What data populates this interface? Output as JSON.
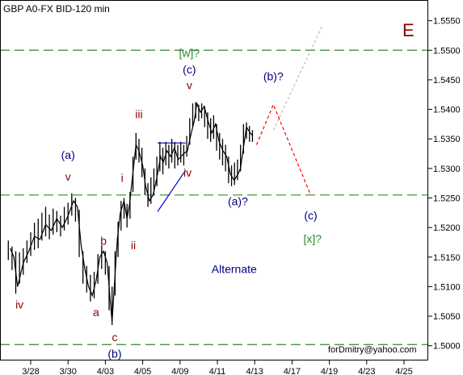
{
  "chart_data": {
    "type": "line",
    "title": "GBP A0-FX BID-120 min",
    "corner_label": "E",
    "footer_text": "forDmitry@yahoo.com",
    "ylim": [
      1.4975,
      1.5585
    ],
    "y_ticks": [
      "1.5000",
      "1.5050",
      "1.5100",
      "1.5150",
      "1.5200",
      "1.5250",
      "1.5300",
      "1.5350",
      "1.5400",
      "1.5450",
      "1.5500",
      "1.5550"
    ],
    "y_tick_values": [
      1.5,
      1.505,
      1.51,
      1.515,
      1.52,
      1.525,
      1.53,
      1.535,
      1.54,
      1.545,
      1.55,
      1.555
    ],
    "x_ticks": [
      "3/28",
      "3/30",
      "4/03",
      "4/05",
      "4/09",
      "4/11",
      "4/13",
      "4/17",
      "4/19",
      "4/23",
      "4/25"
    ],
    "x_tick_positions": [
      0,
      1,
      2,
      3,
      4,
      5,
      6,
      7,
      8,
      9,
      10
    ],
    "grid": false,
    "price_path": [
      [
        -0.55,
        1.5165
      ],
      [
        -0.45,
        1.515
      ],
      [
        -0.35,
        1.51
      ],
      [
        -0.2,
        1.514
      ],
      [
        -0.05,
        1.516
      ],
      [
        0.1,
        1.5185
      ],
      [
        0.25,
        1.518
      ],
      [
        0.4,
        1.5205
      ],
      [
        0.55,
        1.5195
      ],
      [
        0.7,
        1.5215
      ],
      [
        0.85,
        1.52
      ],
      [
        1.0,
        1.522
      ],
      [
        1.15,
        1.5245
      ],
      [
        1.25,
        1.5235
      ],
      [
        1.35,
        1.517
      ],
      [
        1.45,
        1.513
      ],
      [
        1.55,
        1.51
      ],
      [
        1.65,
        1.5085
      ],
      [
        1.75,
        1.511
      ],
      [
        1.85,
        1.515
      ],
      [
        1.95,
        1.516
      ],
      [
        2.05,
        1.514
      ],
      [
        2.12,
        1.5085
      ],
      [
        2.18,
        1.504
      ],
      [
        2.25,
        1.511
      ],
      [
        2.32,
        1.518
      ],
      [
        2.4,
        1.5225
      ],
      [
        2.5,
        1.5245
      ],
      [
        2.58,
        1.5215
      ],
      [
        2.65,
        1.524
      ],
      [
        2.75,
        1.53
      ],
      [
        2.82,
        1.534
      ],
      [
        2.9,
        1.533
      ],
      [
        3.0,
        1.5305
      ],
      [
        3.08,
        1.527
      ],
      [
        3.18,
        1.5245
      ],
      [
        3.28,
        1.5255
      ],
      [
        3.38,
        1.5285
      ],
      [
        3.48,
        1.532
      ],
      [
        3.55,
        1.531
      ],
      [
        3.65,
        1.533
      ],
      [
        3.75,
        1.532
      ],
      [
        3.85,
        1.5335
      ],
      [
        3.95,
        1.5315
      ],
      [
        4.1,
        1.5325
      ],
      [
        4.2,
        1.533
      ],
      [
        4.3,
        1.536
      ],
      [
        4.38,
        1.538
      ],
      [
        4.45,
        1.541
      ],
      [
        4.55,
        1.5395
      ],
      [
        4.65,
        1.5405
      ],
      [
        4.75,
        1.538
      ],
      [
        4.85,
        1.536
      ],
      [
        4.95,
        1.5375
      ],
      [
        5.05,
        1.5345
      ],
      [
        5.15,
        1.533
      ],
      [
        5.25,
        1.532
      ],
      [
        5.35,
        1.529
      ],
      [
        5.45,
        1.528
      ],
      [
        5.55,
        1.529
      ],
      [
        5.62,
        1.53
      ],
      [
        5.7,
        1.5335
      ],
      [
        5.78,
        1.537
      ],
      [
        5.88,
        1.536
      ],
      [
        5.95,
        1.5355
      ]
    ],
    "price_bars": [
      [
        -0.6,
        1.5145,
        1.5178
      ],
      [
        -0.5,
        1.5128,
        1.5168
      ],
      [
        -0.4,
        1.5088,
        1.516
      ],
      [
        -0.3,
        1.5105,
        1.5158
      ],
      [
        -0.2,
        1.512,
        1.5165
      ],
      [
        -0.1,
        1.514,
        1.5178
      ],
      [
        0.0,
        1.5152,
        1.5192
      ],
      [
        0.1,
        1.5162,
        1.5208
      ],
      [
        0.2,
        1.5165,
        1.5215
      ],
      [
        0.3,
        1.5178,
        1.5225
      ],
      [
        0.4,
        1.5185,
        1.5235
      ],
      [
        0.5,
        1.518,
        1.5222
      ],
      [
        0.6,
        1.5188,
        1.5232
      ],
      [
        0.7,
        1.5192,
        1.5228
      ],
      [
        0.8,
        1.5185,
        1.522
      ],
      [
        0.9,
        1.5195,
        1.5235
      ],
      [
        1.0,
        1.5205,
        1.5242
      ],
      [
        1.1,
        1.522,
        1.5258
      ],
      [
        1.2,
        1.521,
        1.525
      ],
      [
        1.3,
        1.515,
        1.523
      ],
      [
        1.4,
        1.5105,
        1.516
      ],
      [
        1.5,
        1.509,
        1.5135
      ],
      [
        1.6,
        1.5075,
        1.512
      ],
      [
        1.7,
        1.508,
        1.5125
      ],
      [
        1.8,
        1.5105,
        1.5155
      ],
      [
        1.9,
        1.513,
        1.517
      ],
      [
        2.0,
        1.512,
        1.516
      ],
      [
        2.1,
        1.506,
        1.5135
      ],
      [
        2.18,
        1.5035,
        1.51
      ],
      [
        2.26,
        1.5085,
        1.516
      ],
      [
        2.34,
        1.515,
        1.521
      ],
      [
        2.42,
        1.5195,
        1.5245
      ],
      [
        2.5,
        1.5215,
        1.525
      ],
      [
        2.58,
        1.52,
        1.524
      ],
      [
        2.66,
        1.5215,
        1.526
      ],
      [
        2.74,
        1.526,
        1.532
      ],
      [
        2.82,
        1.5315,
        1.536
      ],
      [
        2.9,
        1.531,
        1.535
      ],
      [
        2.98,
        1.5285,
        1.5335
      ],
      [
        3.06,
        1.5255,
        1.53
      ],
      [
        3.14,
        1.5235,
        1.5275
      ],
      [
        3.22,
        1.524,
        1.5285
      ],
      [
        3.3,
        1.5255,
        1.53
      ],
      [
        3.38,
        1.527,
        1.532
      ],
      [
        3.46,
        1.5295,
        1.5345
      ],
      [
        3.54,
        1.529,
        1.5335
      ],
      [
        3.62,
        1.5305,
        1.5345
      ],
      [
        3.7,
        1.53,
        1.534
      ],
      [
        3.78,
        1.531,
        1.535
      ],
      [
        3.86,
        1.53,
        1.5345
      ],
      [
        3.94,
        1.5305,
        1.534
      ],
      [
        4.02,
        1.531,
        1.5345
      ],
      [
        4.1,
        1.5305,
        1.534
      ],
      [
        4.18,
        1.532,
        1.5355
      ],
      [
        4.26,
        1.534,
        1.5385
      ],
      [
        4.34,
        1.537,
        1.541
      ],
      [
        4.42,
        1.5385,
        1.5412
      ],
      [
        4.5,
        1.538,
        1.5408
      ],
      [
        4.58,
        1.5385,
        1.541
      ],
      [
        4.66,
        1.537,
        1.5405
      ],
      [
        4.74,
        1.535,
        1.5395
      ],
      [
        4.82,
        1.5345,
        1.5385
      ],
      [
        4.9,
        1.535,
        1.539
      ],
      [
        4.98,
        1.533,
        1.5375
      ],
      [
        5.06,
        1.5315,
        1.536
      ],
      [
        5.14,
        1.5305,
        1.535
      ],
      [
        5.22,
        1.5295,
        1.534
      ],
      [
        5.3,
        1.5275,
        1.532
      ],
      [
        5.38,
        1.527,
        1.5305
      ],
      [
        5.46,
        1.5272,
        1.531
      ],
      [
        5.54,
        1.528,
        1.5315
      ],
      [
        5.62,
        1.5295,
        1.534
      ],
      [
        5.7,
        1.5325,
        1.5375
      ],
      [
        5.78,
        1.535,
        1.5378
      ],
      [
        5.86,
        1.5345,
        1.5372
      ],
      [
        5.94,
        1.5345,
        1.5365
      ]
    ],
    "hlines": [
      1.55,
      1.5255,
      1.5002
    ],
    "projection_main": [
      [
        6.05,
        1.534
      ],
      [
        6.5,
        1.5408
      ],
      [
        7.5,
        1.5255
      ]
    ],
    "projection_alt": [
      [
        6.5,
        1.5365
      ],
      [
        7.8,
        1.554
      ]
    ],
    "triangle_upper": [
      [
        3.4,
        1.5343
      ],
      [
        4.15,
        1.5343
      ]
    ],
    "triangle_lower": [
      [
        3.4,
        1.5227
      ],
      [
        4.15,
        1.5297
      ]
    ],
    "labels": [
      {
        "text": "[w]?",
        "x": 4.25,
        "y": 1.5489,
        "color": "#2e8b2e"
      },
      {
        "text": "(c)",
        "x": 4.25,
        "y": 1.5461,
        "color": "#000080"
      },
      {
        "text": "v",
        "x": 4.25,
        "y": 1.5434,
        "color": "#8b0000"
      },
      {
        "text": "(b)?",
        "x": 6.5,
        "y": 1.5449,
        "color": "#000080"
      },
      {
        "text": "iii",
        "x": 2.9,
        "y": 1.5385,
        "color": "#8b0000"
      },
      {
        "text": "(a)",
        "x": 1.0,
        "y": 1.5316,
        "color": "#000080"
      },
      {
        "text": "v",
        "x": 1.0,
        "y": 1.5279,
        "color": "#8b0000"
      },
      {
        "text": "i",
        "x": 2.45,
        "y": 1.5277,
        "color": "#8b0000"
      },
      {
        "text": "iv",
        "x": 4.2,
        "y": 1.5286,
        "color": "#8b0000"
      },
      {
        "text": "(a)?",
        "x": 5.55,
        "y": 1.5238,
        "color": "#000080"
      },
      {
        "text": "(c)",
        "x": 7.5,
        "y": 1.5214,
        "color": "#000080"
      },
      {
        "text": "[x]?",
        "x": 7.55,
        "y": 1.5174,
        "color": "#2e8b2e"
      },
      {
        "text": "b",
        "x": 1.95,
        "y": 1.5171,
        "color": "#8b0000"
      },
      {
        "text": "ii",
        "x": 2.75,
        "y": 1.5163,
        "color": "#8b0000"
      },
      {
        "text": "Alternate",
        "x": 5.45,
        "y": 1.5123,
        "color": "#000080"
      },
      {
        "text": "iv",
        "x": -0.3,
        "y": 1.5063,
        "color": "#8b0000"
      },
      {
        "text": "a",
        "x": 1.75,
        "y": 1.505,
        "color": "#8b0000"
      },
      {
        "text": "c",
        "x": 2.25,
        "y": 1.5008,
        "color": "#8b0000"
      },
      {
        "text": "(b)",
        "x": 2.25,
        "y": 1.498,
        "color": "#000080"
      }
    ],
    "colors": {
      "price": "#000000",
      "hline": "#2e8b2e",
      "triangle": "#0000cd",
      "projection_main": "#ff0000",
      "projection_alt": "#aaaaaa",
      "corner_label": "#8b0000",
      "axis": "#000000"
    }
  }
}
